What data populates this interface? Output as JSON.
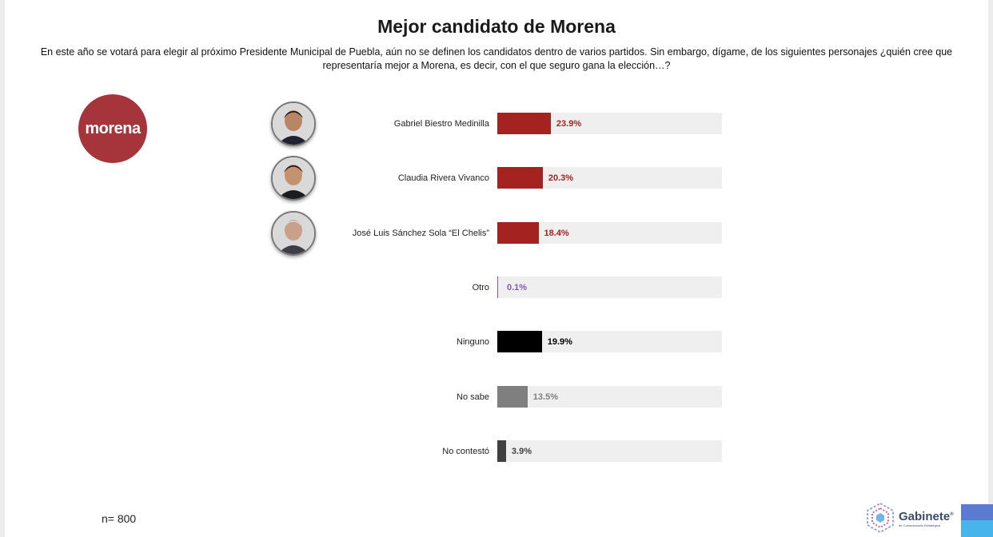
{
  "title": "Mejor candidato de Morena",
  "subtitle": "En este año se votará para elegir al próximo Presidente Municipal de Puebla, aún no se definen los candidatos dentro de varios partidos. Sin embargo, dígame, de los siguientes personajes ¿quién cree que representaría mejor a Morena, es decir, con el que seguro gana la elección…?",
  "logo_text": "morena",
  "sample_size": "n= 800",
  "brand": {
    "name": "Gabinete",
    "tagline": "de Comunicación Estratégica"
  },
  "colors": {
    "morena": "#a6343b",
    "candidate_bar": "#a4221f",
    "otro_text": "#7e5ab4",
    "ninguno_bar": "#000000",
    "no_sabe_bar": "#7f7f7f",
    "no_contesto_bar": "#404040",
    "track": "#efefef"
  },
  "chart_data": {
    "type": "bar",
    "orientation": "horizontal",
    "title": "Mejor candidato de Morena",
    "categories": [
      "Gabriel Biestro Medinilla",
      "Claudia Rivera Vivanco",
      "José Luis Sánchez Sola “El Chelis”",
      "Otro",
      "Ninguno",
      "No sabe",
      "No contestó"
    ],
    "values": [
      23.9,
      20.3,
      18.4,
      0.1,
      19.9,
      13.5,
      3.9
    ],
    "labels": [
      "23.9%",
      "20.3%",
      "18.4%",
      "0.1%",
      "19.9%",
      "13.5%",
      "3.9%"
    ],
    "bar_colors": [
      "#a4221f",
      "#a4221f",
      "#a4221f",
      "#7e5ab4",
      "#000000",
      "#7f7f7f",
      "#404040"
    ],
    "label_colors": [
      "#a4221f",
      "#a4221f",
      "#a4221f",
      "#7e5ab4",
      "#000000",
      "#7f7f7f",
      "#404040"
    ],
    "photos": [
      "candidate-1-photo",
      "candidate-2-photo",
      "candidate-3-photo",
      null,
      null,
      null,
      null
    ],
    "xlim": [
      0,
      100
    ],
    "unit": "%",
    "grid": false,
    "legend": "none"
  }
}
